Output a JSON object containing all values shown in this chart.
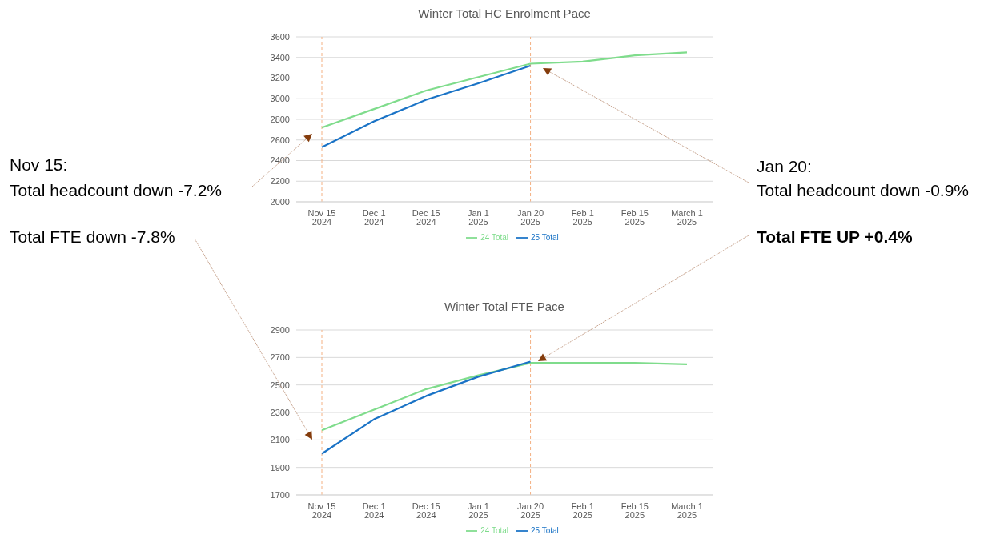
{
  "chart_data": [
    {
      "type": "line",
      "title": "Winter Total HC Enrolment Pace",
      "categories": [
        "Nov 15 2024",
        "Dec 1 2024",
        "Dec 15 2024",
        "Jan 1 2025",
        "Jan 20 2025",
        "Feb 1 2025",
        "Feb 15 2025",
        "March 1 2025"
      ],
      "series": [
        {
          "name": "24 Total",
          "color": "#7fdc8c",
          "values": [
            2720,
            2900,
            3080,
            3210,
            3340,
            3360,
            3420,
            3450
          ]
        },
        {
          "name": "25 Total",
          "color": "#1a73c6",
          "values": [
            2530,
            2780,
            2990,
            3150,
            3320,
            null,
            null,
            null
          ]
        }
      ],
      "ylim": [
        2000,
        3600
      ],
      "yticks": [
        2000,
        2200,
        2400,
        2600,
        2800,
        3000,
        3200,
        3400,
        3600
      ],
      "grid": "y",
      "legend": "bottom",
      "marker": "none",
      "line_style": "solid",
      "ref_lines": [
        {
          "axis": "x",
          "value": "Nov 15 2024",
          "color": "#f4b183",
          "line_style": "dashed"
        },
        {
          "axis": "x",
          "value": "Jan 20 2025",
          "color": "#f4b183",
          "line_style": "dashed"
        }
      ],
      "annotations": [
        "Nov 15:",
        "Total headcount down -7.2%",
        "Jan 20:",
        "Total headcount down -0.9%"
      ]
    },
    {
      "type": "line",
      "title": "Winter Total FTE Pace",
      "categories": [
        "Nov 15 2024",
        "Dec 1 2024",
        "Dec 15 2024",
        "Jan 1 2025",
        "Jan 20 2025",
        "Feb 1 2025",
        "Feb 15 2025",
        "March 1 2025"
      ],
      "series": [
        {
          "name": "24 Total",
          "color": "#7fdc8c",
          "values": [
            2170,
            2320,
            2470,
            2570,
            2660,
            2660,
            2660,
            2650
          ]
        },
        {
          "name": "25 Total",
          "color": "#1a73c6",
          "values": [
            2000,
            2250,
            2420,
            2560,
            2670,
            null,
            null,
            null
          ]
        }
      ],
      "ylim": [
        1700,
        2900
      ],
      "yticks": [
        1700,
        1900,
        2100,
        2300,
        2500,
        2700,
        2900
      ],
      "grid": "y",
      "legend": "bottom",
      "marker": "none",
      "line_style": "solid",
      "ref_lines": [
        {
          "axis": "x",
          "value": "Nov 15 2024",
          "color": "#f4b183",
          "line_style": "dashed"
        },
        {
          "axis": "x",
          "value": "Jan 20 2025",
          "color": "#f4b183",
          "line_style": "dashed"
        }
      ],
      "annotations": [
        "Total FTE down -7.8%",
        "Total FTE UP +0.4%"
      ]
    }
  ]
}
